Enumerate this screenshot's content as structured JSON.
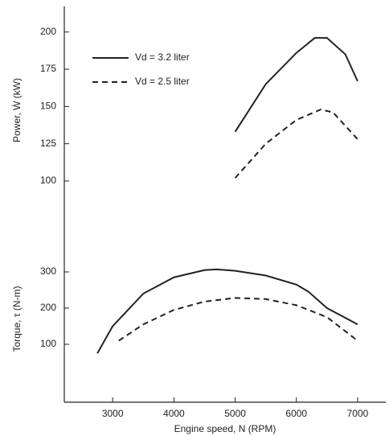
{
  "chart_data": [
    {
      "type": "line",
      "ylabel": "Power, Ẇ (kW)",
      "xlim": [
        2210,
        7460
      ],
      "ylim": [
        80,
        215
      ],
      "yticks": [
        100,
        125,
        150,
        175,
        200
      ],
      "legend": "upper left",
      "series": [
        {
          "name": "Vd = 3.2 liter",
          "color": "#222222",
          "dash": "solid",
          "x": [
            5000,
            5500,
            6000,
            6300,
            6500,
            6800,
            7000
          ],
          "values": [
            133,
            165,
            186,
            196,
            196,
            185,
            167
          ]
        },
        {
          "name": "Vd = 2.5 liter",
          "color": "#222222",
          "dash": "dashed",
          "x": [
            5000,
            5500,
            6000,
            6400,
            6600,
            7000
          ],
          "values": [
            102,
            125,
            141,
            148,
            146,
            128
          ]
        }
      ]
    },
    {
      "type": "line",
      "ylabel": "Torque, τ (N-m)",
      "xlabel": "Engine speed, N (RPM)",
      "xlim": [
        2210,
        7460
      ],
      "ylim": [
        -60,
        400
      ],
      "yticks": [
        100,
        200,
        300
      ],
      "xticks": [
        3000,
        4000,
        5000,
        6000,
        7000
      ],
      "series": [
        {
          "name": "Vd = 3.2 liter",
          "color": "#222222",
          "dash": "solid",
          "x": [
            2750,
            3000,
            3500,
            4000,
            4500,
            4700,
            5000,
            5500,
            6000,
            6200,
            6500,
            7000
          ],
          "values": [
            75,
            150,
            240,
            285,
            305,
            307,
            303,
            290,
            265,
            245,
            200,
            155
          ]
        },
        {
          "name": "Vd = 2.5 liter",
          "color": "#222222",
          "dash": "dashed",
          "x": [
            3100,
            3500,
            4000,
            4500,
            5000,
            5500,
            6000,
            6500,
            7000
          ],
          "values": [
            110,
            155,
            195,
            218,
            228,
            225,
            208,
            175,
            110
          ]
        }
      ]
    }
  ]
}
